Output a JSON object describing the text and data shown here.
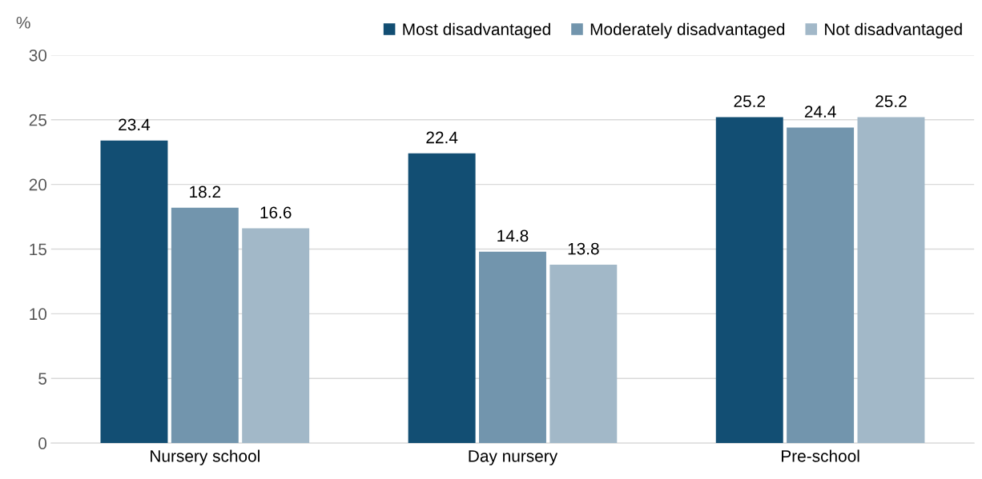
{
  "chart_data": {
    "type": "bar",
    "ylabel": "%",
    "categories": [
      "Nursery school",
      "Day nursery",
      "Pre-school"
    ],
    "series": [
      {
        "name": "Most disadvantaged",
        "color": "#124e73",
        "values": [
          23.4,
          22.4,
          25.2
        ]
      },
      {
        "name": "Moderately disadvantaged",
        "color": "#7295ad",
        "values": [
          18.2,
          14.8,
          24.4
        ]
      },
      {
        "name": "Not disadvantaged",
        "color": "#a2b8c8",
        "values": [
          16.6,
          13.8,
          25.2
        ]
      }
    ],
    "ylim": [
      0,
      30
    ],
    "yticks": [
      0,
      5,
      10,
      15,
      20,
      25,
      30
    ],
    "grid": "y",
    "legend": "top right",
    "data_labels": true
  }
}
